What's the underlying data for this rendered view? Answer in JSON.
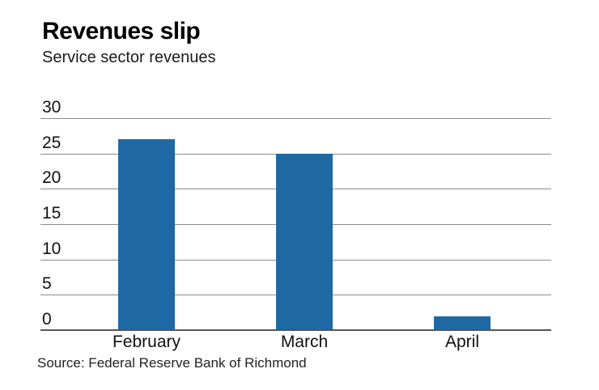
{
  "header": {
    "title": "Revenues slip",
    "subtitle": "Service sector revenues"
  },
  "footer": {
    "source": "Source: Federal Reserve Bank of Richmond"
  },
  "colors": {
    "bar": "#1E69A4",
    "gridline": "#8C8C8C",
    "baseline": "#55565A",
    "title_text": "#000000",
    "axis_text": "#111111"
  },
  "chart_data": {
    "type": "bar",
    "title": "Revenues slip",
    "subtitle": "Service sector revenues",
    "categories": [
      "February",
      "March",
      "April"
    ],
    "values": [
      27,
      25,
      2
    ],
    "xlabel": "",
    "ylabel": "",
    "ylim": [
      0,
      30
    ],
    "yticks": [
      0,
      5,
      10,
      15,
      20,
      25,
      30
    ],
    "grid": "horizontal",
    "legend": "none",
    "bar_color": "#1E69A4",
    "source": "Source: Federal Reserve Bank of Richmond"
  }
}
